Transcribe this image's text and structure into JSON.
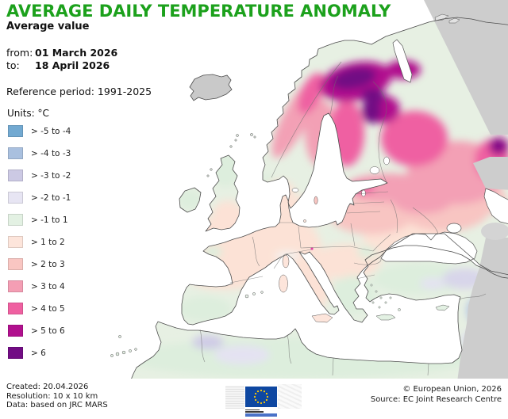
{
  "header": {
    "title": "AVERAGE DAILY TEMPERATURE ANOMALY",
    "subtitle": "Average value",
    "from_label": "from:",
    "from_value": "01 March 2026",
    "to_label": "to:",
    "to_value": "18 April 2026",
    "reference": "Reference period: 1991-2025"
  },
  "legend": {
    "units_label": "Units: °C",
    "items": [
      {
        "label": "> -5 to -4",
        "color": "#72A9D1"
      },
      {
        "label": "> -4 to -3",
        "color": "#A9C0DF"
      },
      {
        "label": "> -3 to -2",
        "color": "#CCC9E4"
      },
      {
        "label": "> -2 to -1",
        "color": "#E7E5F3"
      },
      {
        "label": "> -1 to 1",
        "color": "#E3F1E3"
      },
      {
        "label": "> 1 to 2",
        "color": "#FDE5DB"
      },
      {
        "label": "> 2 to 3",
        "color": "#F9C6C2"
      },
      {
        "label": "> 3 to 4",
        "color": "#F49EB4"
      },
      {
        "label": "> 4 to 5",
        "color": "#EF60A1"
      },
      {
        "label": "> 5 to 6",
        "color": "#B1108E"
      },
      {
        "label": "> 6",
        "color": "#720C84"
      }
    ]
  },
  "footer": {
    "created": "Created: 20.04.2026",
    "resolution": "Resolution: 10 x 10 km",
    "data": "Data: based on JRC MARS",
    "copyright": "© European Union, 2026",
    "source": "Source: EC Joint Research Centre"
  },
  "colors": {
    "title_green": "#1CA11C",
    "no_data_gray": "#CDCDCD",
    "sea_white": "#FFFFFF",
    "coastline": "#4D4D4D"
  },
  "map_summary": {
    "type": "choropleth-map",
    "extent": "Europe, North Africa, Middle East",
    "regions": [
      {
        "area": "Iceland, far north-east and south-east margins",
        "anomaly_class": "no data (gray)"
      },
      {
        "area": "Scotland, Ireland, southern Iberia, Greece, Turkey, North Africa coast",
        "anomaly_class": "> -1 to 1"
      },
      {
        "area": "England, France, Germany, Alps, Italy, Balkans, southern Scandinavia",
        "anomaly_class": "> 1 to 2"
      },
      {
        "area": "NE Poland, Belarus, Ukraine, central Russia",
        "anomaly_class": "> 2 to 3"
      },
      {
        "area": "Baltic states, mid Norway and Sweden, western Russia",
        "anomaly_class": "> 3 to 4"
      },
      {
        "area": "Finland, north-west Russia",
        "anomaly_class": "> 4 to 5"
      },
      {
        "area": "Northern Scandinavia, Kola Peninsula, far-east patch",
        "anomaly_class": "> 5 to 6"
      },
      {
        "area": "Lapland core",
        "anomaly_class": "> 6"
      },
      {
        "area": "Eastern Turkey, Syria, Atlas Mountains",
        "anomaly_class": "> -2 to -1"
      }
    ]
  }
}
